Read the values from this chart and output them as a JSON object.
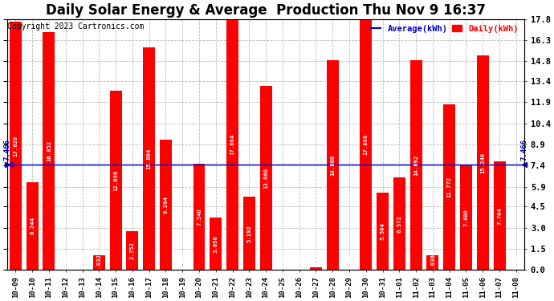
{
  "title": "Daily Solar Energy & Average  Production Thu Nov 9 16:37",
  "copyright": "Copyright 2023 Cartronics.com",
  "categories": [
    "10-09",
    "10-10",
    "10-11",
    "10-12",
    "10-13",
    "10-14",
    "10-15",
    "10-16",
    "10-17",
    "10-18",
    "10-19",
    "10-20",
    "10-21",
    "10-22",
    "10-23",
    "10-24",
    "10-25",
    "10-26",
    "10-27",
    "10-28",
    "10-29",
    "10-30",
    "10-31",
    "11-01",
    "11-02",
    "11-03",
    "11-04",
    "11-05",
    "11-06",
    "11-07",
    "11-08"
  ],
  "values": [
    17.62,
    6.244,
    16.852,
    0.0,
    0.0,
    1.032,
    12.696,
    2.752,
    15.804,
    9.264,
    0.0,
    7.54,
    3.696,
    17.804,
    5.192,
    13.06,
    0.044,
    0.0,
    0.216,
    14.86,
    0.024,
    17.808,
    5.504,
    6.572,
    14.892,
    1.036,
    11.772,
    7.48,
    15.24,
    7.704,
    0.0
  ],
  "average": 7.466,
  "bar_color": "#ff0000",
  "avg_line_color": "#0000cd",
  "ylim": [
    0.0,
    17.8
  ],
  "yticks": [
    0.0,
    1.5,
    3.0,
    4.5,
    5.9,
    7.4,
    8.9,
    10.4,
    11.9,
    13.4,
    14.8,
    16.3,
    17.8
  ],
  "bg_color": "#ffffff",
  "grid_color": "#aaaaaa",
  "title_fontsize": 12,
  "copyright_fontsize": 7,
  "legend_avg_label": "Average(kWh)",
  "legend_daily_label": "Daily(kWh)",
  "avg_label": "7.466"
}
